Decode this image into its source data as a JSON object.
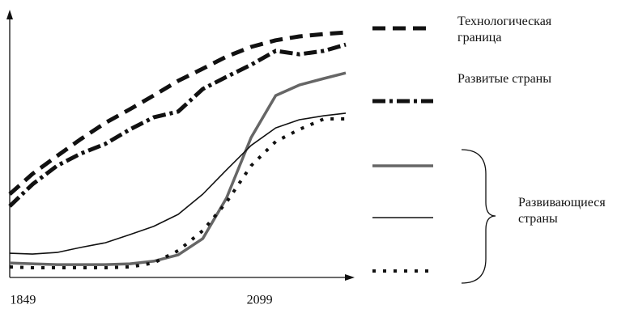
{
  "chart_data": {
    "type": "line",
    "x": [
      1835,
      1859,
      1885,
      1910,
      1936,
      1962,
      1987,
      2013,
      2039,
      2064,
      2090,
      2116,
      2141,
      2167,
      2190
    ],
    "xlim": [
      1835,
      2190
    ],
    "xticks": [
      1849,
      2099
    ],
    "ylim": [
      0,
      100
    ],
    "legend_group_label": "Развивающиеся страны",
    "series": [
      {
        "name": "Технологическая граница",
        "color": "#111111",
        "width": 5,
        "dash": "16,9",
        "values": [
          31.7,
          39.4,
          46.2,
          52.6,
          58.8,
          64,
          69.2,
          74.8,
          79.4,
          84,
          87.7,
          90.2,
          91.7,
          92.6,
          93.2
        ]
      },
      {
        "name": "Развитые страны",
        "color": "#111111",
        "width": 5,
        "dash": "16,5,4,5",
        "values": [
          27.1,
          35.4,
          42.5,
          47.1,
          50.8,
          56.3,
          60.9,
          63.1,
          71.7,
          76.3,
          80.9,
          86.2,
          84.9,
          86.2,
          88.6
        ]
      },
      {
        "color": "#666666",
        "width": 3.5,
        "dash": "none",
        "values": [
          5.5,
          5.2,
          4.9,
          4.9,
          4.9,
          5.2,
          6.2,
          8.6,
          14.8,
          30.2,
          53.2,
          69.2,
          73.2,
          75.7,
          77.8
        ]
      },
      {
        "color": "#111111",
        "width": 1.6,
        "dash": "none",
        "values": [
          9.2,
          8.9,
          9.5,
          11.4,
          13.2,
          16.3,
          19.4,
          24,
          31.7,
          40.9,
          50.2,
          56.9,
          60,
          61.5,
          62.5
        ]
      },
      {
        "color": "#111111",
        "width": 4,
        "dash": "4,9",
        "values": [
          4,
          3.7,
          3.7,
          3.7,
          3.7,
          4,
          5.5,
          10.2,
          17.8,
          28.6,
          42.5,
          51.7,
          56.3,
          60.3,
          60.3
        ]
      }
    ]
  }
}
